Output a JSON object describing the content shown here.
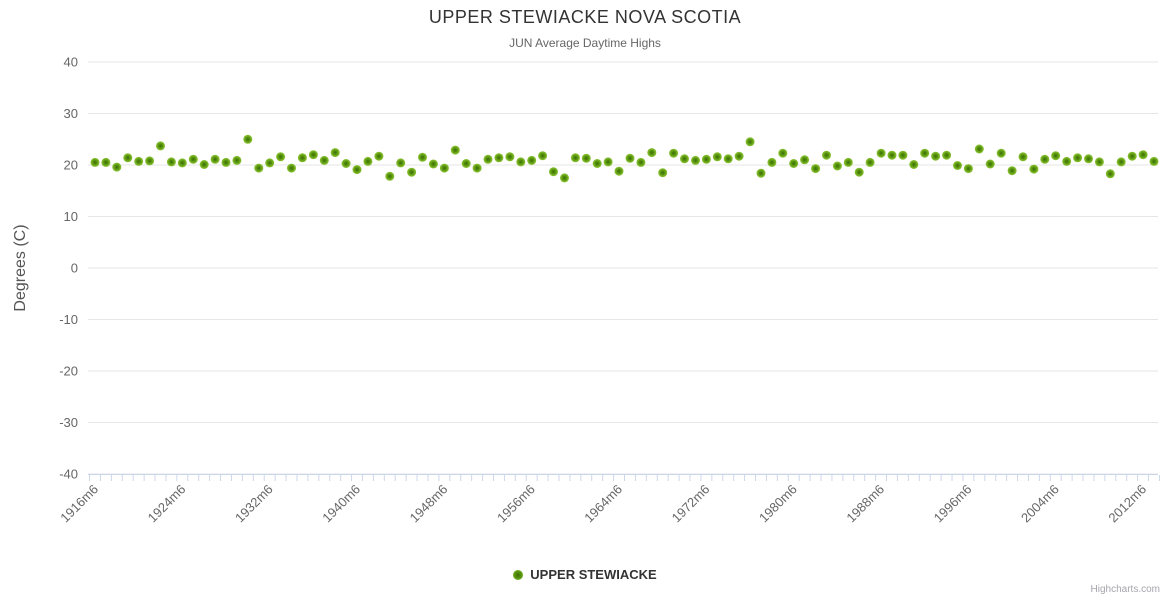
{
  "header": {
    "title": "UPPER STEWIACKE NOVA SCOTIA",
    "subtitle": "JUN Average Daytime Highs"
  },
  "legend": {
    "series_label": "UPPER STEWIACKE",
    "marker_color": "#7cb528"
  },
  "credit": "Highcharts.com",
  "colors": {
    "point_outer": "#7cb528",
    "point_inner": "#3e6c07",
    "grid_line": "#e6e6e6",
    "axis_line": "#ccd6eb",
    "tick_mark": "#ccd6eb",
    "title_text": "#333333",
    "subtitle_text": "#666666",
    "axis_label_text": "#666666",
    "axis_title_text": "#555555",
    "credit_text": "#a5a5ad"
  },
  "chart_data": {
    "type": "scatter",
    "title": "UPPER STEWIACKE NOVA SCOTIA",
    "subtitle": "JUN Average Daytime Highs",
    "xlabel": "",
    "ylabel": "Degrees (C)",
    "ylim": [
      -40,
      40
    ],
    "y_ticks": [
      40,
      30,
      20,
      10,
      0,
      -10,
      -20,
      -30,
      -40
    ],
    "y_tick_labels": [
      "40",
      "30",
      "20",
      "10",
      "0",
      "-10",
      "-20",
      "-30",
      "-40"
    ],
    "x_tick_labels": [
      "1916m6",
      "1924m6",
      "1932m6",
      "1940m6",
      "1948m6",
      "1956m6",
      "1964m6",
      "1972m6",
      "1980m6",
      "1988m6",
      "1996m6",
      "2004m6",
      "2012m6"
    ],
    "x_label_step_years": 8,
    "grid": true,
    "legend_position": "bottom",
    "series": [
      {
        "name": "UPPER STEWIACKE",
        "color": "#7cb528",
        "years": [
          1916,
          1917,
          1918,
          1919,
          1920,
          1921,
          1922,
          1923,
          1924,
          1925,
          1926,
          1927,
          1928,
          1929,
          1930,
          1931,
          1932,
          1933,
          1934,
          1935,
          1936,
          1937,
          1938,
          1939,
          1940,
          1941,
          1942,
          1943,
          1944,
          1945,
          1946,
          1947,
          1948,
          1949,
          1950,
          1951,
          1952,
          1953,
          1954,
          1955,
          1956,
          1957,
          1958,
          1959,
          1960,
          1961,
          1962,
          1963,
          1964,
          1965,
          1966,
          1967,
          1968,
          1969,
          1970,
          1971,
          1972,
          1973,
          1974,
          1975,
          1976,
          1977,
          1978,
          1979,
          1980,
          1981,
          1982,
          1983,
          1984,
          1985,
          1986,
          1987,
          1988,
          1989,
          1990,
          1991,
          1992,
          1993,
          1994,
          1995,
          1996,
          1997,
          1998,
          1999,
          2000,
          2001,
          2002,
          2003,
          2004,
          2005,
          2006,
          2007,
          2008,
          2009,
          2010,
          2011,
          2012,
          2013
        ],
        "values": [
          20.5,
          20.5,
          19.6,
          21.4,
          20.7,
          20.8,
          23.7,
          20.6,
          20.4,
          21.1,
          20.1,
          21.1,
          20.5,
          20.9,
          25.0,
          19.4,
          20.4,
          21.6,
          19.4,
          21.4,
          22.0,
          20.9,
          22.4,
          20.3,
          19.1,
          20.7,
          21.7,
          17.8,
          20.4,
          18.6,
          21.5,
          20.2,
          19.4,
          22.9,
          20.3,
          19.4,
          21.1,
          21.4,
          21.6,
          20.6,
          20.9,
          21.8,
          18.7,
          17.5,
          21.4,
          21.3,
          20.3,
          20.6,
          18.8,
          21.3,
          20.5,
          22.4,
          18.5,
          22.3,
          21.2,
          20.9,
          21.1,
          21.6,
          21.2,
          21.7,
          24.5,
          18.4,
          20.5,
          22.3,
          20.3,
          21.0,
          19.3,
          21.9,
          19.8,
          20.5,
          18.6,
          20.5,
          22.3,
          21.9,
          21.9,
          20.1,
          22.3,
          21.7,
          21.9,
          19.9,
          19.3,
          23.1,
          20.2,
          22.3,
          18.9,
          21.6,
          19.2,
          21.1,
          21.8,
          20.7,
          21.4,
          21.2,
          20.6,
          18.3,
          20.6,
          21.7,
          22.0,
          20.7
        ]
      }
    ]
  }
}
